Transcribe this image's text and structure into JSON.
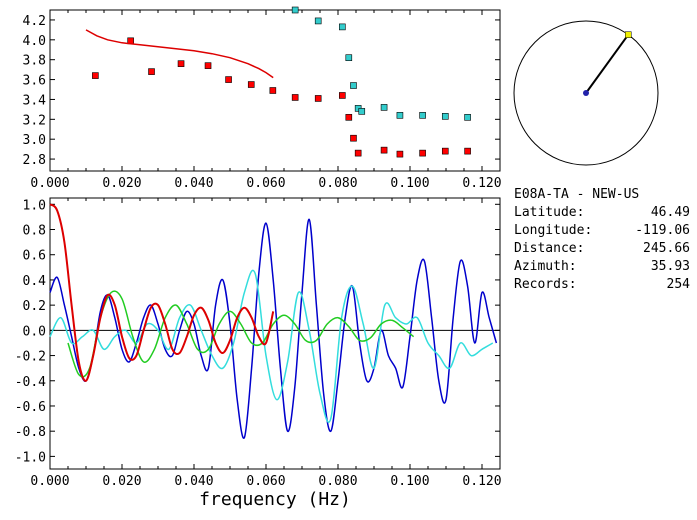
{
  "station": {
    "name": "E08A-TA - NEW-US",
    "fields": [
      {
        "label": "Latitude:",
        "value": "46.49"
      },
      {
        "label": "Longitude:",
        "value": "-119.06"
      },
      {
        "label": "Distance:",
        "value": "245.66"
      },
      {
        "label": "Azimuth:",
        "value": "35.93"
      },
      {
        "label": "Records:",
        "value": "254"
      }
    ]
  },
  "chart_data": [
    {
      "type": "scatter",
      "title": "",
      "xlabel": "",
      "ylabel": "",
      "xlim": [
        0.0,
        0.125
      ],
      "ylim": [
        2.68,
        4.3
      ],
      "xticks": [
        "0.000",
        "0.020",
        "0.040",
        "0.060",
        "0.080",
        "0.100",
        "0.120"
      ],
      "yticks": [
        "2.8",
        "3.0",
        "3.2",
        "3.4",
        "3.6",
        "3.8",
        "4.0",
        "4.2"
      ],
      "colors": {
        "red": "#ff0000",
        "cyan": "#33cccc",
        "curve": "#dd0000"
      },
      "series": [
        {
          "marker": "square",
          "color": "red",
          "x": [
            0.0126,
            0.0224,
            0.0282,
            0.0364,
            0.0439,
            0.0496,
            0.0559,
            0.0619,
            0.0681,
            0.0745,
            0.0812,
            0.083,
            0.0843,
            0.0856,
            0.0928,
            0.0972,
            0.1035,
            0.1098,
            0.116
          ],
          "y": [
            3.64,
            3.99,
            3.68,
            3.76,
            3.74,
            3.6,
            3.55,
            3.49,
            3.42,
            3.41,
            3.44,
            3.22,
            3.01,
            2.86,
            2.89,
            2.85,
            2.86,
            2.88,
            2.88
          ]
        },
        {
          "marker": "square",
          "color": "cyan",
          "x": [
            0.0681,
            0.0745,
            0.0812,
            0.083,
            0.0843,
            0.0856,
            0.0866,
            0.0928,
            0.0972,
            0.1035,
            0.1098,
            0.116
          ],
          "y": [
            4.3,
            4.19,
            4.13,
            3.82,
            3.54,
            3.31,
            3.28,
            3.32,
            3.24,
            3.24,
            3.23,
            3.22
          ],
          "note": ""
        },
        {
          "marker": "line",
          "color": "curve",
          "x": [
            0.01,
            0.013,
            0.016,
            0.02,
            0.025,
            0.03,
            0.035,
            0.04,
            0.045,
            0.05,
            0.055,
            0.058,
            0.06,
            0.062
          ],
          "y": [
            4.1,
            4.04,
            4.0,
            3.97,
            3.95,
            3.93,
            3.91,
            3.89,
            3.86,
            3.82,
            3.76,
            3.71,
            3.67,
            3.62
          ]
        }
      ]
    },
    {
      "type": "line",
      "title": "",
      "xlabel": "frequency (Hz)",
      "ylabel": "",
      "xlim": [
        0.0,
        0.125
      ],
      "ylim": [
        -1.1,
        1.05
      ],
      "xticks": [
        "0.000",
        "0.020",
        "0.040",
        "0.060",
        "0.080",
        "0.100",
        "0.120"
      ],
      "yticks": [
        "1.0",
        "0.8",
        "0.6",
        "0.4",
        "0.2",
        "0.0",
        "-0.2",
        "-0.4",
        "-0.6",
        "-0.8",
        "-1.0"
      ],
      "series": [
        {
          "color": "#0000cc",
          "x": [
            0.0,
            0.002,
            0.004,
            0.006,
            0.008,
            0.01,
            0.012,
            0.014,
            0.016,
            0.018,
            0.02,
            0.022,
            0.024,
            0.026,
            0.028,
            0.03,
            0.032,
            0.034,
            0.036,
            0.038,
            0.04,
            0.042,
            0.044,
            0.046,
            0.048,
            0.05,
            0.052,
            0.054,
            0.056,
            0.058,
            0.06,
            0.062,
            0.064,
            0.066,
            0.068,
            0.07,
            0.072,
            0.074,
            0.076,
            0.078,
            0.08,
            0.082,
            0.084,
            0.086,
            0.088,
            0.09,
            0.092,
            0.094,
            0.096,
            0.098,
            0.1,
            0.102,
            0.104,
            0.106,
            0.108,
            0.11,
            0.112,
            0.114,
            0.116,
            0.118,
            0.12,
            0.122,
            0.124
          ],
          "y": [
            0.3,
            0.42,
            0.2,
            -0.05,
            -0.3,
            -0.4,
            -0.2,
            0.15,
            0.28,
            0.1,
            -0.15,
            -0.25,
            -0.1,
            0.1,
            0.2,
            0.05,
            -0.15,
            -0.2,
            0.0,
            0.15,
            0.05,
            -0.2,
            -0.3,
            0.2,
            0.4,
            0.05,
            -0.55,
            -0.85,
            -0.3,
            0.45,
            0.85,
            0.4,
            -0.3,
            -0.8,
            -0.45,
            0.3,
            0.88,
            0.2,
            -0.5,
            -0.8,
            -0.4,
            0.1,
            0.35,
            -0.1,
            -0.4,
            -0.3,
            0.0,
            -0.2,
            -0.3,
            -0.45,
            -0.05,
            0.4,
            0.55,
            0.1,
            -0.4,
            -0.55,
            0.1,
            0.55,
            0.35,
            -0.1,
            0.3,
            0.1,
            -0.1
          ]
        },
        {
          "color": "#33dddd",
          "x": [
            0.0,
            0.003,
            0.006,
            0.009,
            0.012,
            0.015,
            0.018,
            0.021,
            0.024,
            0.027,
            0.03,
            0.033,
            0.036,
            0.039,
            0.042,
            0.045,
            0.048,
            0.051,
            0.054,
            0.057,
            0.06,
            0.063,
            0.066,
            0.069,
            0.072,
            0.075,
            0.078,
            0.081,
            0.084,
            0.087,
            0.09,
            0.093,
            0.096,
            0.099,
            0.102,
            0.105,
            0.108,
            0.111,
            0.114,
            0.117,
            0.12,
            0.123
          ],
          "y": [
            -0.05,
            0.1,
            -0.1,
            -0.05,
            0.0,
            -0.15,
            -0.05,
            0.0,
            -0.1,
            0.05,
            0.0,
            -0.15,
            0.1,
            0.2,
            0.0,
            -0.2,
            -0.3,
            -0.1,
            0.3,
            0.45,
            -0.2,
            -0.55,
            -0.25,
            0.3,
            0.0,
            -0.5,
            -0.7,
            0.1,
            0.35,
            0.05,
            -0.3,
            0.2,
            0.1,
            0.05,
            0.1,
            -0.1,
            -0.2,
            -0.3,
            -0.1,
            -0.2,
            -0.15,
            -0.1
          ]
        },
        {
          "color": "#22cc22",
          "x": [
            0.005,
            0.008,
            0.011,
            0.014,
            0.017,
            0.02,
            0.023,
            0.026,
            0.029,
            0.032,
            0.035,
            0.038,
            0.041,
            0.044,
            0.047,
            0.05,
            0.053,
            0.056,
            0.059,
            0.062,
            0.065,
            0.068,
            0.071,
            0.074,
            0.077,
            0.08,
            0.083,
            0.086,
            0.089,
            0.092,
            0.095,
            0.098,
            0.101
          ],
          "y": [
            -0.1,
            -0.35,
            -0.3,
            0.1,
            0.3,
            0.25,
            -0.05,
            -0.25,
            -0.15,
            0.1,
            0.2,
            0.05,
            -0.15,
            -0.15,
            0.05,
            0.15,
            0.05,
            -0.1,
            -0.1,
            0.05,
            0.12,
            0.05,
            -0.08,
            -0.08,
            0.05,
            0.1,
            0.03,
            -0.08,
            -0.06,
            0.05,
            0.08,
            0.02,
            -0.05
          ]
        },
        {
          "color": "#dd0000",
          "x": [
            0.0,
            0.002,
            0.004,
            0.006,
            0.008,
            0.01,
            0.012,
            0.014,
            0.016,
            0.018,
            0.02,
            0.022,
            0.024,
            0.026,
            0.028,
            0.03,
            0.032,
            0.034,
            0.036,
            0.038,
            0.04,
            0.042,
            0.044,
            0.046,
            0.048,
            0.05,
            0.052,
            0.054,
            0.056,
            0.058,
            0.06,
            0.062
          ],
          "y": [
            1.0,
            0.95,
            0.7,
            0.2,
            -0.25,
            -0.4,
            -0.2,
            0.1,
            0.28,
            0.2,
            -0.05,
            -0.22,
            -0.2,
            0.0,
            0.18,
            0.2,
            0.05,
            -0.15,
            -0.18,
            -0.05,
            0.12,
            0.18,
            0.08,
            -0.1,
            -0.18,
            -0.08,
            0.1,
            0.18,
            0.1,
            -0.05,
            -0.1,
            0.15
          ]
        }
      ]
    }
  ],
  "azimuth_dial": {
    "azimuth_deg": 35.93,
    "colors": {
      "ring": "#000000",
      "needle": "#000000",
      "center": "#2222aa",
      "tip": "#eeee00"
    }
  }
}
